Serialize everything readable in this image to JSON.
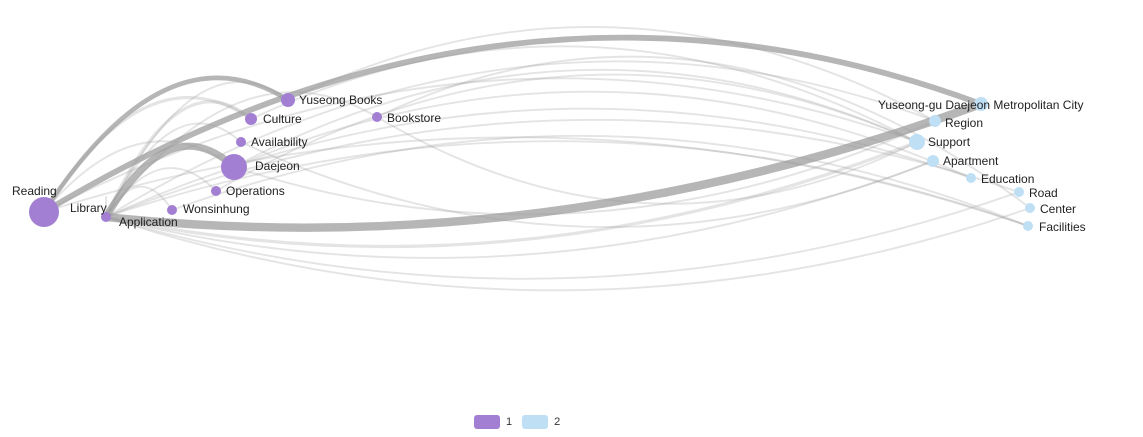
{
  "colors": {
    "group1": "#a27fd3",
    "group2": "#bfdff5",
    "edge": "#9e9e9e"
  },
  "legend": [
    {
      "label": "1",
      "group": 1
    },
    {
      "label": "2",
      "group": 2
    }
  ],
  "nodes": [
    {
      "id": "reading",
      "label": "Reading",
      "group": 1
    },
    {
      "id": "library",
      "label": "Library",
      "group": 1
    },
    {
      "id": "application",
      "label": "Application",
      "group": 1
    },
    {
      "id": "wonsinhung",
      "label": "Wonsinhung",
      "group": 1
    },
    {
      "id": "operations",
      "label": "Operations",
      "group": 1
    },
    {
      "id": "daejeon",
      "label": "Daejeon",
      "group": 1
    },
    {
      "id": "availability",
      "label": "Availability",
      "group": 1
    },
    {
      "id": "culture",
      "label": "Culture",
      "group": 1
    },
    {
      "id": "yuseong-books",
      "label": "Yuseong Books",
      "group": 1
    },
    {
      "id": "bookstore",
      "label": "Bookstore",
      "group": 1
    },
    {
      "id": "yuseong-gu",
      "label": "Yuseong-gu Daejeon Metropolitan City",
      "group": 2
    },
    {
      "id": "region",
      "label": "Region",
      "group": 2
    },
    {
      "id": "support",
      "label": "Support",
      "group": 2
    },
    {
      "id": "apartment",
      "label": "Apartment",
      "group": 2
    },
    {
      "id": "education",
      "label": "Education",
      "group": 2
    },
    {
      "id": "road",
      "label": "Road",
      "group": 2
    },
    {
      "id": "center",
      "label": "Center",
      "group": 2
    },
    {
      "id": "facilities",
      "label": "Facilities",
      "group": 2
    }
  ],
  "edges": [
    {
      "source": "library",
      "target": "yuseong-gu",
      "weight": 6
    },
    {
      "source": "library",
      "target": "daejeon",
      "weight": 5
    },
    {
      "source": "reading",
      "target": "yuseong-gu",
      "weight": 4
    },
    {
      "source": "reading",
      "target": "yuseong-books",
      "weight": 3
    },
    {
      "source": "library",
      "target": "culture",
      "weight": 2
    },
    {
      "source": "reading",
      "target": "culture",
      "weight": 2
    },
    {
      "source": "library",
      "target": "support",
      "weight": 2
    },
    {
      "source": "reading",
      "target": "support",
      "weight": 1
    },
    {
      "source": "library",
      "target": "region",
      "weight": 1
    },
    {
      "source": "library",
      "target": "apartment",
      "weight": 1
    },
    {
      "source": "library",
      "target": "education",
      "weight": 1
    },
    {
      "source": "library",
      "target": "road",
      "weight": 1
    },
    {
      "source": "library",
      "target": "center",
      "weight": 1
    },
    {
      "source": "library",
      "target": "facilities",
      "weight": 1
    },
    {
      "source": "daejeon",
      "target": "support",
      "weight": 1
    },
    {
      "source": "daejeon",
      "target": "region",
      "weight": 1
    },
    {
      "source": "daejeon",
      "target": "education",
      "weight": 1
    },
    {
      "source": "culture",
      "target": "support",
      "weight": 1
    },
    {
      "source": "bookstore",
      "target": "support",
      "weight": 1
    },
    {
      "source": "bookstore",
      "target": "center",
      "weight": 1
    },
    {
      "source": "yuseong-books",
      "target": "region",
      "weight": 1
    },
    {
      "source": "availability",
      "target": "apartment",
      "weight": 1
    },
    {
      "source": "operations",
      "target": "support",
      "weight": 1
    },
    {
      "source": "wonsinhung",
      "target": "facilities",
      "weight": 1
    },
    {
      "source": "application",
      "target": "road",
      "weight": 1
    },
    {
      "source": "reading",
      "target": "facilities",
      "weight": 1
    },
    {
      "source": "library",
      "target": "yuseong-books",
      "weight": 1
    },
    {
      "source": "library",
      "target": "availability",
      "weight": 1
    },
    {
      "source": "library",
      "target": "operations",
      "weight": 1
    },
    {
      "source": "library",
      "target": "wonsinhung",
      "weight": 1
    },
    {
      "source": "library",
      "target": "application",
      "weight": 1
    },
    {
      "source": "library",
      "target": "bookstore",
      "weight": 1
    },
    {
      "source": "reading",
      "target": "daejeon",
      "weight": 1
    }
  ]
}
